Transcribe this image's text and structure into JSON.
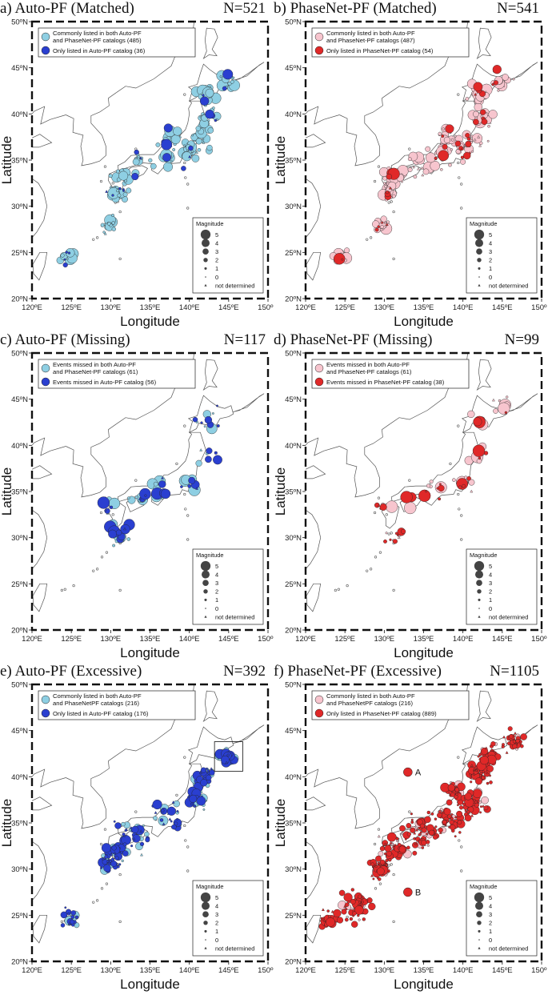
{
  "axes": {
    "lon_ticks": [
      "120ºE",
      "125ºE",
      "130ºE",
      "135ºE",
      "140ºE",
      "145ºE",
      "150ºE"
    ],
    "lat_ticks": [
      "20ºN",
      "25ºN",
      "30ºN",
      "35ºN",
      "40ºN",
      "45ºN",
      "50ºN"
    ],
    "xlabel": "Longitude",
    "ylabel": "Latitude",
    "lon_range": [
      120,
      150
    ],
    "lat_range": [
      20,
      50
    ]
  },
  "magnitude_legend": {
    "title": "Magnitude",
    "labels": [
      "5",
      "4",
      "3",
      "2",
      "1",
      "0",
      "not determined"
    ]
  },
  "colors": {
    "autopf_common": "#8ecfe3",
    "autopf_only": "#2a3fd0",
    "phasenet_common": "#f7c5ce",
    "phasenet_only": "#e02828"
  },
  "panels": [
    {
      "title": "a) Auto-PF (Matched)",
      "count": "N=521",
      "theme": "auto",
      "legend": [
        "Commonly listed in both Auto-PF|and PhaseNet-PF catalogs (485)",
        "Only listed in Auto-PF catalog (36)"
      ]
    },
    {
      "title": "b) PhaseNet-PF (Matched)",
      "count": "N=541",
      "theme": "phasenet",
      "legend": [
        "Commonly listed in both Auto-PF|and PhaseNet-PF catalogs (487)",
        "Only listed in PhaseNet-PF catalog (54)"
      ]
    },
    {
      "title": "c) Auto-PF (Missing)",
      "count": "N=117",
      "theme": "auto",
      "legend": [
        "Events missed in both Auto-PF|and PhaseNet-PF catalogs (61)",
        "Events missed in Auto-PF catalog (56)"
      ]
    },
    {
      "title": "d) PhaseNet-PF (Missing)",
      "count": "N=99",
      "theme": "phasenet",
      "legend": [
        "Events missed in both Auto-PF|and PhaseNet-PF catalogs (61)",
        "Events missed in PhaseNet-PF catalog (38)"
      ]
    },
    {
      "title": "e) Auto-PF (Excessive)",
      "count": "N=392",
      "theme": "auto",
      "legend": [
        "Commonly listed in both Auto-PF|and PhaseNetPF catalogs (216)",
        "Only listed in Auto-PF catalog (176)"
      ]
    },
    {
      "title": "f) PhaseNet-PF (Excessive)",
      "count": "N=1105",
      "theme": "phasenet",
      "legend": [
        "Commonly listed in both Auto-PF|and PhaseNetPF catalogs (216)",
        "Only listed in PhaseNet-PF catalog (889)"
      ],
      "annotations": [
        {
          "label": "A",
          "lon": 133.0,
          "lat": 40.5
        },
        {
          "label": "B",
          "lon": 133.0,
          "lat": 27.5
        }
      ]
    }
  ]
}
